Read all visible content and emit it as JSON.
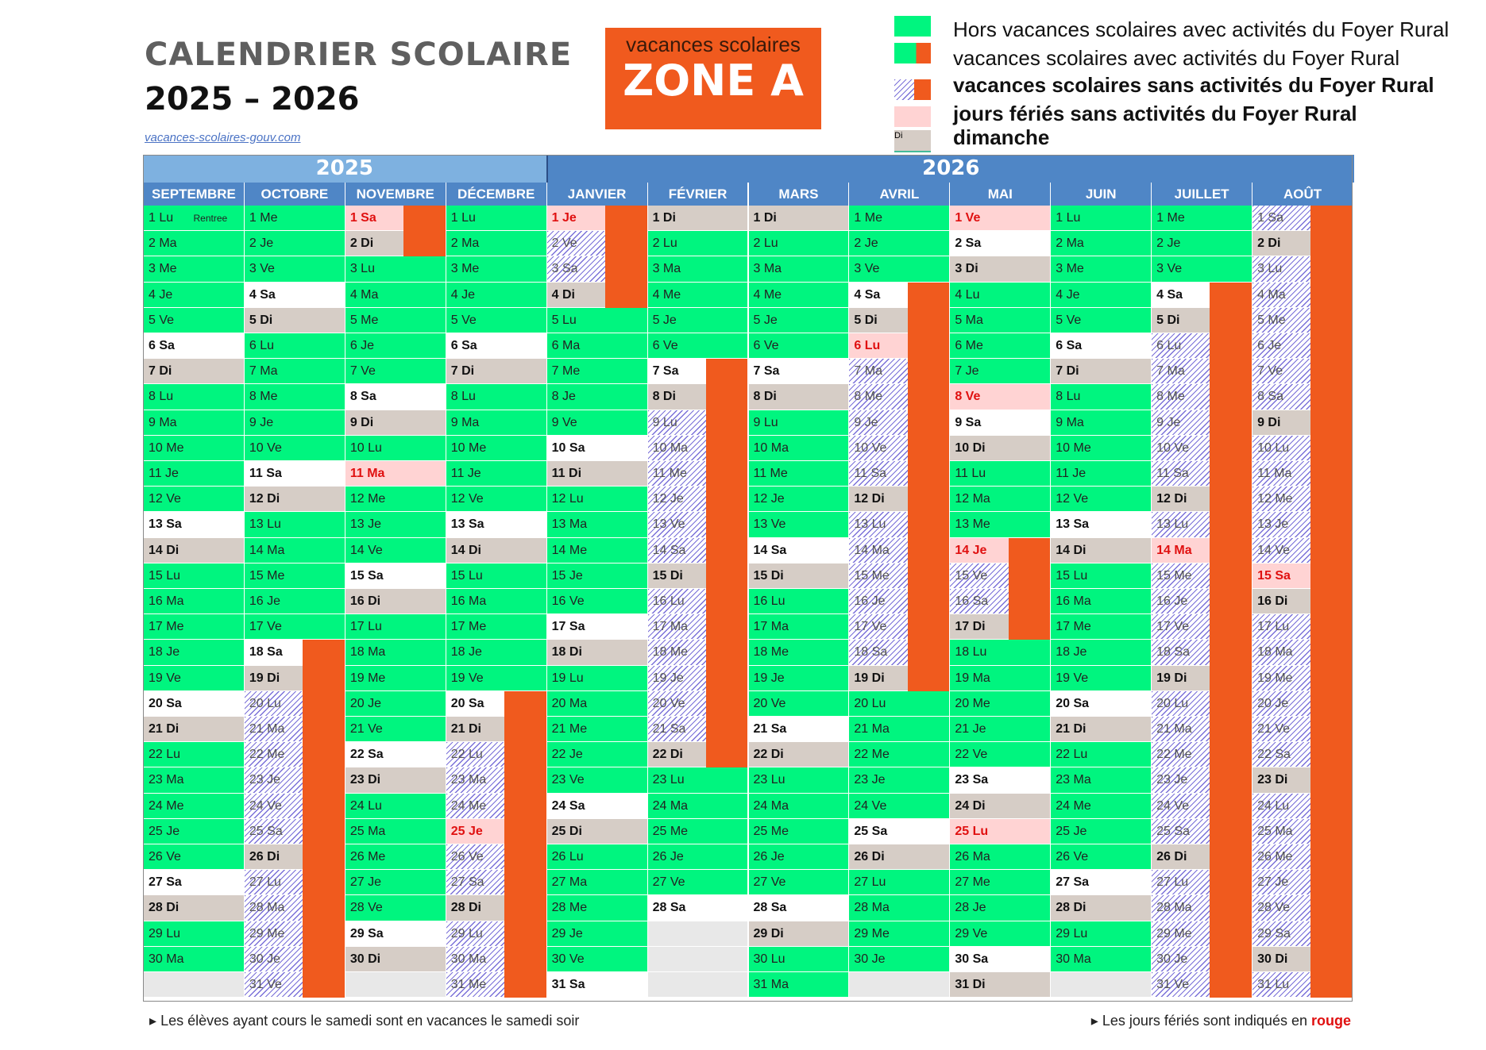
{
  "title": {
    "line1": "CALENDRIER SCOLAIRE",
    "line2": "2025 – 2026",
    "source": "vacances-scolaires-gouv.com"
  },
  "zone": {
    "sub": "vacances scolaires",
    "big": "ZONE A"
  },
  "legend": [
    {
      "type": "school",
      "text": "Hors vacances scolaires avec activités du Foyer Rural"
    },
    {
      "type": "vac_act",
      "text": "vacances scolaires avec activités du Foyer Rural"
    },
    {
      "type": "vac_noact",
      "text": "vacances scolaires sans activités du Foyer Rural"
    },
    {
      "type": "holiday",
      "text": "jours fériés sans activités du Foyer Rural"
    },
    {
      "type": "sunday",
      "swatch_text": "Di",
      "text": "dimanche"
    }
  ],
  "colors": {
    "school": "#00f57f",
    "vac_noact": "#f05a1e",
    "hatch": "#7a70d8",
    "sunday": "#d6cdc6",
    "holiday": "#ffd3d3",
    "holiday_text": "#e01010",
    "header": "#4f86c6",
    "header_light": "#7eb1e0",
    "empty": "#e8e8e8"
  },
  "years": [
    {
      "label": "2025",
      "months": 4
    },
    {
      "label": "2026",
      "months": 8
    }
  ],
  "months": [
    {
      "name": "SEPTEMBRE",
      "days": [
        "1 Lu|g|Rentree",
        "2 Ma|g",
        "3 Me|g",
        "4 Je|g",
        "5 Ve|g",
        "6 Sa|s",
        "7 Di|d",
        "8 Lu|g",
        "9 Ma|g",
        "10 Me|g",
        "11 Je|g",
        "12 Ve|g",
        "13 Sa|s",
        "14 Di|d",
        "15 Lu|g",
        "16 Ma|g",
        "17 Me|g",
        "18 Je|g",
        "19 Ve|g",
        "20 Sa|s",
        "21 Di|d",
        "22 Lu|g",
        "23 Ma|g",
        "24 Me|g",
        "25 Je|g",
        "26 Ve|g",
        "27 Sa|s",
        "28 Di|d",
        "29 Lu|g",
        "30 Ma|g",
        "|x"
      ],
      "bars": []
    },
    {
      "name": "OCTOBRE",
      "days": [
        "1 Me|g",
        "2 Je|g",
        "3 Ve|g",
        "4 Sa|s",
        "5 Di|d",
        "6 Lu|g",
        "7 Ma|g",
        "8 Me|g",
        "9 Je|g",
        "10 Ve|g",
        "11 Sa|s",
        "12 Di|d",
        "13 Lu|g",
        "14 Ma|g",
        "15 Me|g",
        "16 Je|g",
        "17 Ve|g",
        "18 Sa|s",
        "19 Di|d",
        "20 Lu|v",
        "21 Ma|v",
        "22 Me|v",
        "23 Je|v",
        "24 Ve|v",
        "25 Sa|v",
        "26 Di|d",
        "27 Lu|v",
        "28 Ma|v",
        "29 Me|v",
        "30 Je|v",
        "31 Ve|v"
      ],
      "bars": [
        [
          18,
          31
        ]
      ]
    },
    {
      "name": "NOVEMBRE",
      "days": [
        "1 Sa|h",
        "2 Di|d",
        "3 Lu|g",
        "4 Ma|g",
        "5 Me|g",
        "6 Je|g",
        "7 Ve|g",
        "8 Sa|s",
        "9 Di|d",
        "10 Lu|g",
        "11 Ma|h",
        "12 Me|g",
        "13 Je|g",
        "14 Ve|g",
        "15 Sa|s",
        "16 Di|d",
        "17 Lu|g",
        "18 Ma|g",
        "19 Me|g",
        "20 Je|g",
        "21 Ve|g",
        "22 Sa|s",
        "23 Di|d",
        "24 Lu|g",
        "25 Ma|g",
        "26 Me|g",
        "27 Je|g",
        "28 Ve|g",
        "29 Sa|s",
        "30 Di|d",
        "|x"
      ],
      "bars": [
        [
          1,
          2
        ]
      ]
    },
    {
      "name": "DÉCEMBRE",
      "days": [
        "1 Lu|g",
        "2 Ma|g",
        "3 Me|g",
        "4 Je|g",
        "5 Ve|g",
        "6 Sa|s",
        "7 Di|d",
        "8 Lu|g",
        "9 Ma|g",
        "10 Me|g",
        "11 Je|g",
        "12 Ve|g",
        "13 Sa|s",
        "14 Di|d",
        "15 Lu|g",
        "16 Ma|g",
        "17 Me|g",
        "18 Je|g",
        "19 Ve|g",
        "20 Sa|s",
        "21 Di|d",
        "22 Lu|v",
        "23 Ma|v",
        "24 Me|v",
        "25 Je|h",
        "26 Ve|v",
        "27 Sa|v",
        "28 Di|d",
        "29 Lu|v",
        "30 Ma|v",
        "31 Me|v"
      ],
      "bars": [
        [
          20,
          31
        ]
      ]
    },
    {
      "name": "JANVIER",
      "days": [
        "1 Je|h",
        "2 Ve|v",
        "3 Sa|v",
        "4 Di|d",
        "5 Lu|g",
        "6 Ma|g",
        "7 Me|g",
        "8 Je|g",
        "9 Ve|g",
        "10 Sa|s",
        "11 Di|d",
        "12 Lu|g",
        "13 Ma|g",
        "14 Me|g",
        "15 Je|g",
        "16 Ve|g",
        "17 Sa|s",
        "18 Di|d",
        "19 Lu|g",
        "20 Ma|g",
        "21 Me|g",
        "22 Je|g",
        "23 Ve|g",
        "24 Sa|s",
        "25 Di|d",
        "26 Lu|g",
        "27 Ma|g",
        "28 Me|g",
        "29 Je|g",
        "30 Ve|g",
        "31 Sa|s"
      ],
      "bars": [
        [
          1,
          4
        ]
      ]
    },
    {
      "name": "FÉVRIER",
      "days": [
        "1 Di|d",
        "2 Lu|g",
        "3 Ma|g",
        "4 Me|g",
        "5 Je|g",
        "6 Ve|g",
        "7 Sa|s",
        "8 Di|d",
        "9 Lu|v",
        "10 Ma|v",
        "11 Me|v",
        "12 Je|v",
        "13 Ve|v",
        "14 Sa|v",
        "15 Di|d",
        "16 Lu|v",
        "17 Ma|v",
        "18 Me|v",
        "19 Je|v",
        "20 Ve|v",
        "21 Sa|v",
        "22 Di|d",
        "23 Lu|g",
        "24 Ma|g",
        "25 Me|g",
        "26 Je|g",
        "27 Ve|g",
        "28 Sa|s",
        "|x",
        "|x",
        "|x"
      ],
      "bars": [
        [
          7,
          22
        ]
      ]
    },
    {
      "name": "MARS",
      "days": [
        "1 Di|d",
        "2 Lu|g",
        "3 Ma|g",
        "4 Me|g",
        "5 Je|g",
        "6 Ve|g",
        "7 Sa|s",
        "8 Di|d",
        "9 Lu|g",
        "10 Ma|g",
        "11 Me|g",
        "12 Je|g",
        "13 Ve|g",
        "14 Sa|s",
        "15 Di|d",
        "16 Lu|g",
        "17 Ma|g",
        "18 Me|g",
        "19 Je|g",
        "20 Ve|g",
        "21 Sa|s",
        "22 Di|d",
        "23 Lu|g",
        "24 Ma|g",
        "25 Me|g",
        "26 Je|g",
        "27 Ve|g",
        "28 Sa|s",
        "29 Di|d",
        "30 Lu|g",
        "31 Ma|g"
      ],
      "bars": []
    },
    {
      "name": "AVRIL",
      "days": [
        "1 Me|g",
        "2 Je|g",
        "3 Ve|g",
        "4 Sa|s",
        "5 Di|d",
        "6 Lu|h",
        "7 Ma|v",
        "8 Me|v",
        "9 Je|v",
        "10 Ve|v",
        "11 Sa|v",
        "12 Di|d",
        "13 Lu|v",
        "14 Ma|v",
        "15 Me|v",
        "16 Je|v",
        "17 Ve|v",
        "18 Sa|v",
        "19 Di|d",
        "20 Lu|g",
        "21 Ma|g",
        "22 Me|g",
        "23 Je|g",
        "24 Ve|g",
        "25 Sa|s",
        "26 Di|d",
        "27 Lu|g",
        "28 Ma|g",
        "29 Me|g",
        "30 Je|g",
        "|x"
      ],
      "bars": [
        [
          4,
          19
        ]
      ]
    },
    {
      "name": "MAI",
      "days": [
        "1 Ve|h",
        "2 Sa|s",
        "3 Di|d",
        "4 Lu|g",
        "5 Ma|g",
        "6 Me|g",
        "7 Je|g",
        "8 Ve|h",
        "9 Sa|s",
        "10 Di|d",
        "11 Lu|g",
        "12 Ma|g",
        "13 Me|g",
        "14 Je|h",
        "15 Ve|v",
        "16 Sa|v",
        "17 Di|d",
        "18 Lu|g",
        "19 Ma|g",
        "20 Me|g",
        "21 Je|g",
        "22 Ve|g",
        "23 Sa|s",
        "24 Di|d",
        "25 Lu|h",
        "26 Ma|g",
        "27 Me|g",
        "28 Je|g",
        "29 Ve|g",
        "30 Sa|s",
        "31 Di|d"
      ],
      "bars": [
        [
          14,
          17
        ]
      ]
    },
    {
      "name": "JUIN",
      "days": [
        "1 Lu|g",
        "2 Ma|g",
        "3 Me|g",
        "4 Je|g",
        "5 Ve|g",
        "6 Sa|s",
        "7 Di|d",
        "8 Lu|g",
        "9 Ma|g",
        "10 Me|g",
        "11 Je|g",
        "12 Ve|g",
        "13 Sa|s",
        "14 Di|d",
        "15 Lu|g",
        "16 Ma|g",
        "17 Me|g",
        "18 Je|g",
        "19 Ve|g",
        "20 Sa|s",
        "21 Di|d",
        "22 Lu|g",
        "23 Ma|g",
        "24 Me|g",
        "25 Je|g",
        "26 Ve|g",
        "27 Sa|s",
        "28 Di|d",
        "29 Lu|g",
        "30 Ma|g",
        "|x"
      ],
      "bars": []
    },
    {
      "name": "JUILLET",
      "days": [
        "1 Me|g",
        "2 Je|g",
        "3 Ve|g",
        "4 Sa|s",
        "5 Di|d",
        "6 Lu|v",
        "7 Ma|v",
        "8 Me|v",
        "9 Je|v",
        "10 Ve|v",
        "11 Sa|v",
        "12 Di|d",
        "13 Lu|v",
        "14 Ma|h",
        "15 Me|v",
        "16 Je|v",
        "17 Ve|v",
        "18 Sa|v",
        "19 Di|d",
        "20 Lu|v",
        "21 Ma|v",
        "22 Me|v",
        "23 Je|v",
        "24 Ve|v",
        "25 Sa|v",
        "26 Di|d",
        "27 Lu|v",
        "28 Ma|v",
        "29 Me|v",
        "30 Je|v",
        "31 Ve|v"
      ],
      "bars": [
        [
          4,
          31
        ]
      ]
    },
    {
      "name": "AOÛT",
      "days": [
        "1 Sa|v",
        "2 Di|d",
        "3 Lu|v",
        "4 Ma|v",
        "5 Me|v",
        "6 Je|v",
        "7 Ve|v",
        "8 Sa|v",
        "9 Di|d",
        "10 Lu|v",
        "11 Ma|v",
        "12 Me|v",
        "13 Je|v",
        "14 Ve|v",
        "15 Sa|h",
        "16 Di|d",
        "17 Lu|v",
        "18 Ma|v",
        "19 Me|v",
        "20 Je|v",
        "21 Ve|v",
        "22 Sa|v",
        "23 Di|d",
        "24 Lu|v",
        "25 Ma|v",
        "26 Me|v",
        "27 Je|v",
        "28 Ve|v",
        "29 Sa|v",
        "30 Di|d",
        "31 Lu|v"
      ],
      "bars": [
        [
          1,
          31
        ]
      ]
    }
  ],
  "footer": {
    "left": "Les élèves ayant cours le samedi sont en vacances le samedi soir",
    "right_prefix": "Les jours fériés sont indiqués en ",
    "right_red": "rouge"
  }
}
